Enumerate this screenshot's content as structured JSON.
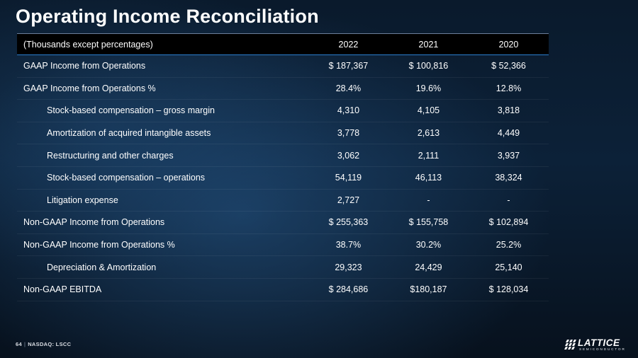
{
  "slide": {
    "title": "Operating Income Reconciliation"
  },
  "table": {
    "header": {
      "label": "(Thousands except percentages)",
      "years": [
        "2022",
        "2021",
        "2020"
      ]
    },
    "rows": [
      {
        "label": "GAAP Income from Operations",
        "indent": false,
        "values": [
          "$ 187,367",
          "$ 100,816",
          "$ 52,366"
        ]
      },
      {
        "label": "GAAP Income from Operations %",
        "indent": false,
        "values": [
          "28.4%",
          "19.6%",
          "12.8%"
        ]
      },
      {
        "label": "Stock-based compensation – gross margin",
        "indent": true,
        "values": [
          "4,310",
          "4,105",
          "3,818"
        ]
      },
      {
        "label": "Amortization of acquired intangible assets",
        "indent": true,
        "values": [
          "3,778",
          "2,613",
          "4,449"
        ]
      },
      {
        "label": "Restructuring and other charges",
        "indent": true,
        "values": [
          "3,062",
          "2,111",
          "3,937"
        ]
      },
      {
        "label": "Stock-based compensation – operations",
        "indent": true,
        "values": [
          "54,119",
          "46,113",
          "38,324"
        ]
      },
      {
        "label": "Litigation expense",
        "indent": true,
        "values": [
          "2,727",
          "-",
          "-"
        ]
      },
      {
        "label": "Non-GAAP Income from Operations",
        "indent": false,
        "values": [
          "$ 255,363",
          "$ 155,758",
          "$ 102,894"
        ]
      },
      {
        "label": "Non-GAAP Income from Operations %",
        "indent": false,
        "values": [
          "38.7%",
          "30.2%",
          "25.2%"
        ]
      },
      {
        "label": "Depreciation & Amortization",
        "indent": true,
        "values": [
          "29,323",
          "24,429",
          "25,140"
        ]
      },
      {
        "label": "Non-GAAP EBITDA",
        "indent": false,
        "values": [
          "$ 284,686",
          "$180,187",
          "$ 128,034"
        ]
      }
    ]
  },
  "footer": {
    "page_number": "64",
    "separator": "|",
    "ticker": "NASDAQ: LSCC"
  },
  "logo": {
    "name": "LATTICE",
    "subtitle": "SEMICONDUCTOR"
  },
  "colors": {
    "header_bg": "#000000",
    "header_rule": "#2a7fd0",
    "text": "#ffffff"
  }
}
